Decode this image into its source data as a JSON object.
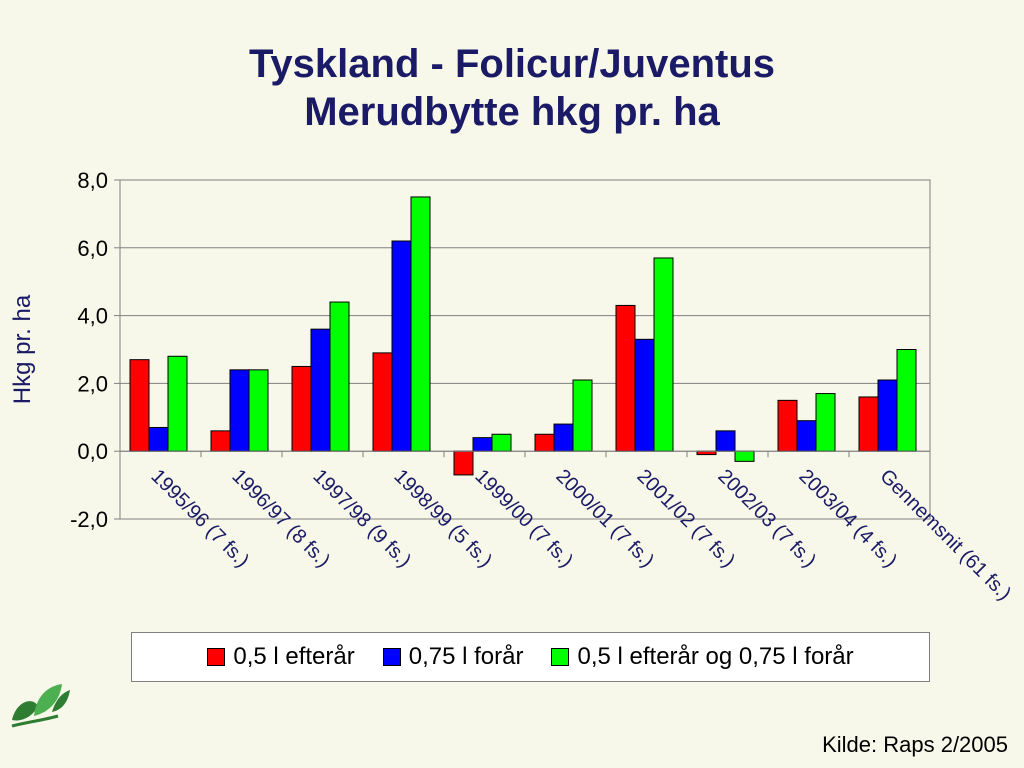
{
  "title_line1": "Tyskland - Folicur/Juventus",
  "title_line2": "Merudbytte hkg pr. ha",
  "source": "Kilde: Raps 2/2005",
  "chart_data": {
    "type": "bar",
    "ylabel": "Hkg pr. ha",
    "ylim": [
      -2.0,
      8.0
    ],
    "yticks": [
      "8,0",
      "6,0",
      "4,0",
      "2,0",
      "0,0",
      "-2,0"
    ],
    "ytick_values": [
      8,
      6,
      4,
      2,
      0,
      -2
    ],
    "grid": true,
    "legend_position": "bottom",
    "categories": [
      "1995/96 (7 fs.)",
      "1996/97 (8 fs.)",
      "1997/98 (9 fs.)",
      "1998/99 (5 fs.)",
      "1999/00 (7 fs.)",
      "2000/01 (7 fs.)",
      "2001/02 (7 fs.)",
      "2002/03 (7 fs.)",
      "2003/04 (4 fs.)",
      "Gennemsnit (61 fs.)"
    ],
    "series": [
      {
        "name": "0,5 l efterår",
        "color": "#ff0000",
        "values": [
          2.7,
          0.6,
          2.5,
          2.9,
          -0.7,
          0.5,
          4.3,
          -0.1,
          1.5,
          1.6
        ]
      },
      {
        "name": "0,75 l forår",
        "color": "#0000ff",
        "values": [
          0.7,
          2.4,
          3.6,
          6.2,
          0.4,
          0.8,
          3.3,
          0.6,
          0.9,
          2.1
        ]
      },
      {
        "name": "0,5 l efterår og 0,75 l forår",
        "color": "#00ff00",
        "values": [
          2.8,
          2.4,
          4.4,
          7.5,
          0.5,
          2.1,
          5.7,
          -0.3,
          1.7,
          3.0
        ]
      }
    ]
  }
}
